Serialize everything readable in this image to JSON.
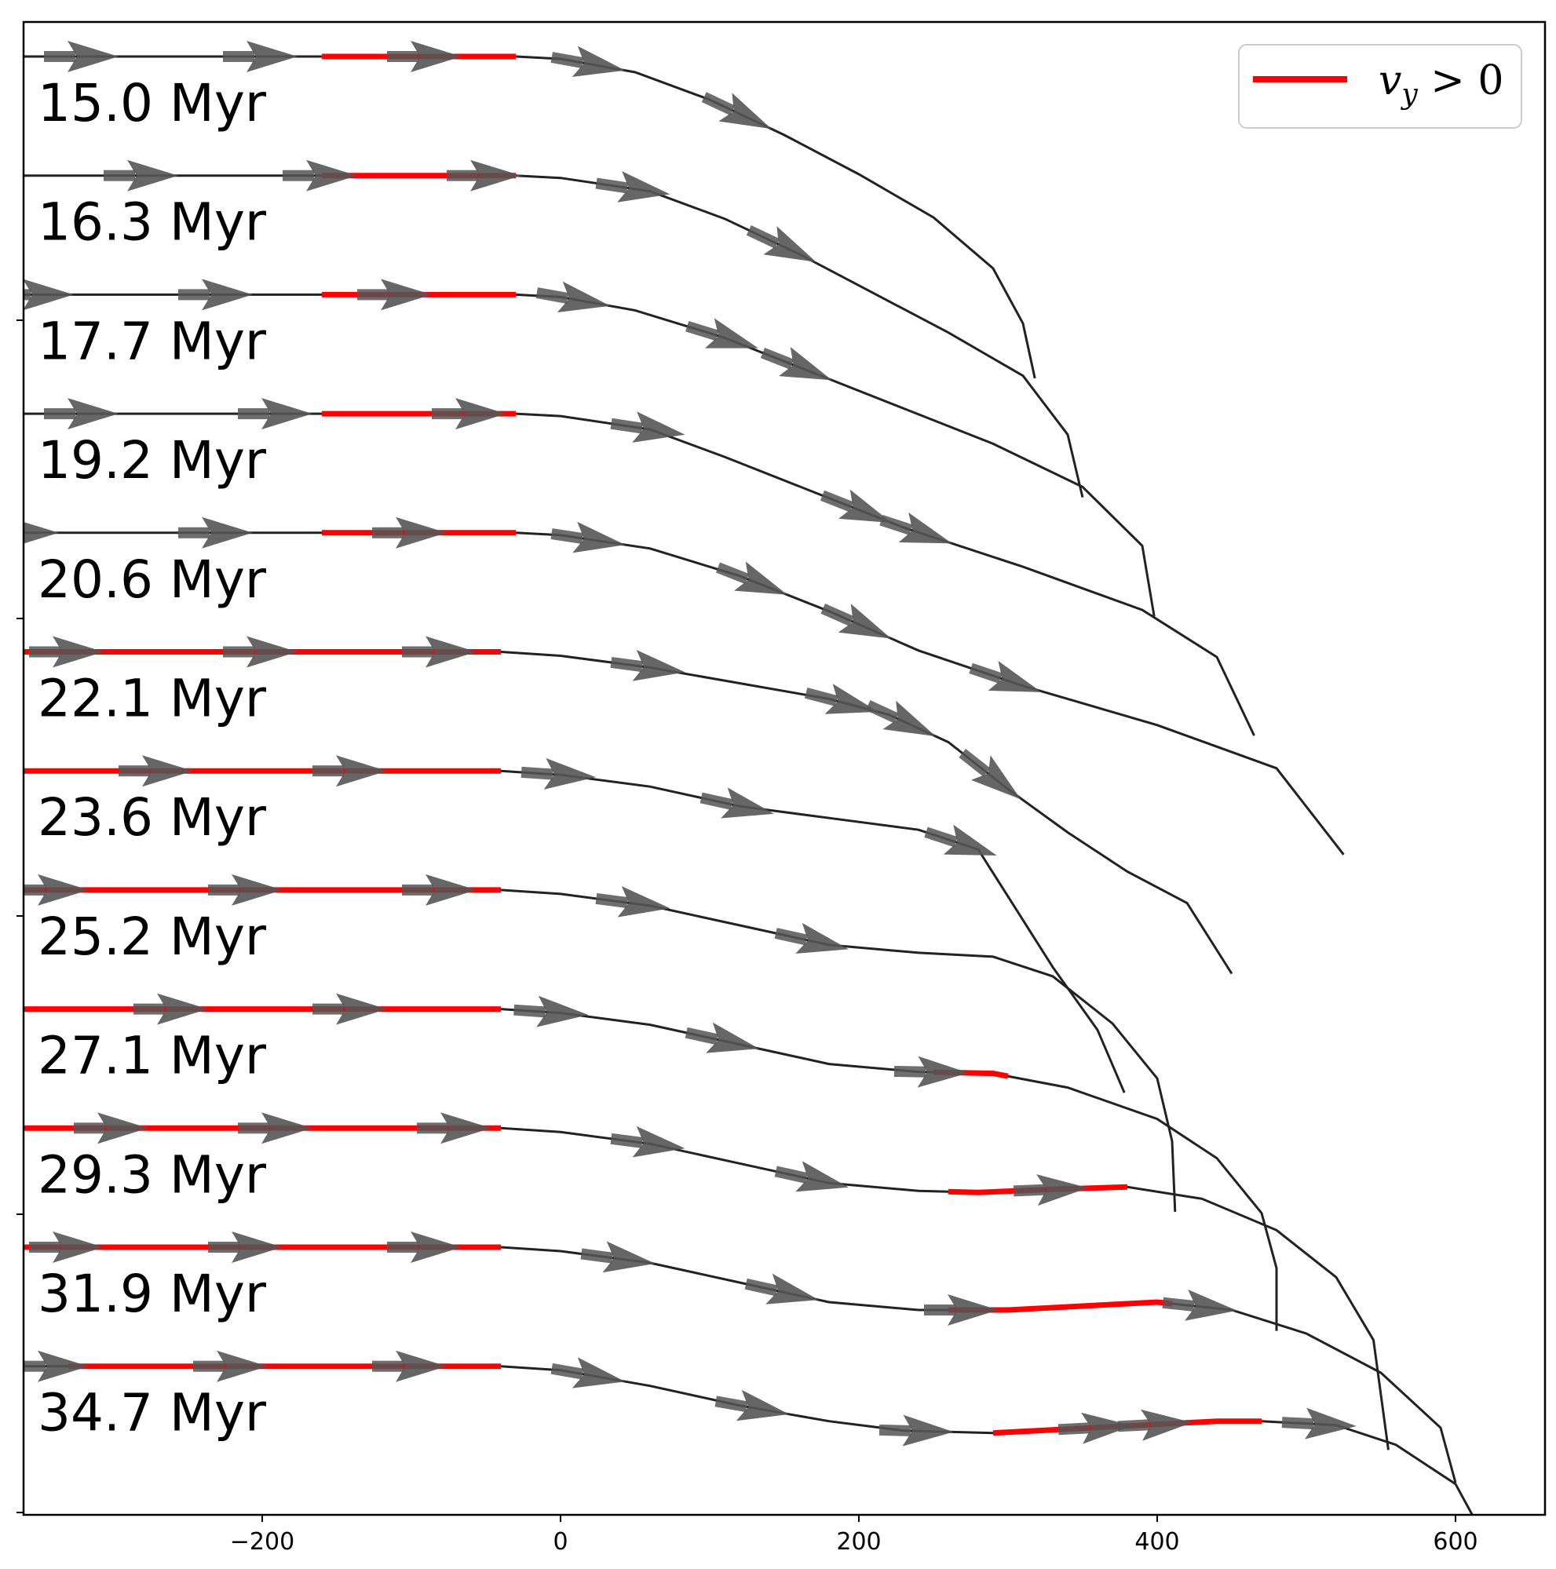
{
  "chart_data": {
    "type": "line",
    "title": "",
    "xlabel": "",
    "ylabel": "",
    "xlim": [
      -360,
      660
    ],
    "x_ticks": [
      -200,
      0,
      200,
      400,
      600
    ],
    "x_tick_labels": [
      "−200",
      "0",
      "200",
      "400",
      "600"
    ],
    "grid": false,
    "legend": {
      "placement": "top-right",
      "entries": [
        {
          "label_main": "v",
          "label_sub": "y",
          "label_rest": " > 0",
          "color": "#ff0000"
        }
      ]
    },
    "colors": {
      "trajectory": "#222222",
      "highlight": "#ff0000",
      "arrow": "#555555"
    },
    "series": [
      {
        "name": "15.0 Myr",
        "path": [
          [
            -360,
            0
          ],
          [
            -30,
            0
          ],
          [
            0,
            -3
          ],
          [
            50,
            -20
          ],
          [
            100,
            -55
          ],
          [
            150,
            -100
          ],
          [
            200,
            -150
          ],
          [
            250,
            -205
          ],
          [
            290,
            -270
          ],
          [
            310,
            -340
          ],
          [
            318,
            -410
          ]
        ],
        "highlight": [
          [
            -160,
            0
          ],
          [
            -30,
            0
          ]
        ],
        "arrows_x": [
          -320,
          -200,
          -90,
          20,
          120
        ]
      },
      {
        "name": "16.3 Myr",
        "path": [
          [
            -360,
            0
          ],
          [
            -30,
            0
          ],
          [
            0,
            -3
          ],
          [
            60,
            -20
          ],
          [
            110,
            -55
          ],
          [
            160,
            -100
          ],
          [
            210,
            -150
          ],
          [
            260,
            -200
          ],
          [
            310,
            -255
          ],
          [
            340,
            -330
          ],
          [
            350,
            -410
          ]
        ],
        "highlight": [
          [
            -160,
            0
          ],
          [
            -30,
            0
          ]
        ],
        "arrows_x": [
          -280,
          -160,
          -50,
          50,
          150
        ]
      },
      {
        "name": "17.7 Myr",
        "path": [
          [
            -360,
            0
          ],
          [
            -30,
            0
          ],
          [
            0,
            -3
          ],
          [
            50,
            -20
          ],
          [
            110,
            -55
          ],
          [
            170,
            -100
          ],
          [
            230,
            -145
          ],
          [
            290,
            -190
          ],
          [
            350,
            -245
          ],
          [
            390,
            -320
          ],
          [
            398,
            -410
          ]
        ],
        "highlight": [
          [
            -160,
            0
          ],
          [
            -30,
            0
          ]
        ],
        "arrows_x": [
          -350,
          -230,
          -110,
          10,
          110,
          160
        ]
      },
      {
        "name": "19.2 Myr",
        "path": [
          [
            -360,
            0
          ],
          [
            -30,
            0
          ],
          [
            0,
            -3
          ],
          [
            60,
            -20
          ],
          [
            110,
            -55
          ],
          [
            170,
            -100
          ],
          [
            230,
            -145
          ],
          [
            310,
            -195
          ],
          [
            390,
            -250
          ],
          [
            440,
            -310
          ],
          [
            465,
            -410
          ]
        ],
        "highlight": [
          [
            -160,
            0
          ],
          [
            -30,
            0
          ]
        ],
        "arrows_x": [
          -320,
          -190,
          -60,
          60,
          200,
          240
        ]
      },
      {
        "name": "20.6 Myr",
        "path": [
          [
            -360,
            0
          ],
          [
            -30,
            0
          ],
          [
            0,
            -3
          ],
          [
            60,
            -20
          ],
          [
            120,
            -55
          ],
          [
            180,
            -100
          ],
          [
            240,
            -150
          ],
          [
            310,
            -195
          ],
          [
            400,
            -245
          ],
          [
            480,
            -300
          ],
          [
            525,
            -410
          ]
        ],
        "highlight": [
          [
            -160,
            0
          ],
          [
            -30,
            0
          ]
        ],
        "arrows_x": [
          -360,
          -230,
          -100,
          20,
          130,
          200,
          300
        ]
      },
      {
        "name": "22.1 Myr",
        "path": [
          [
            -360,
            0
          ],
          [
            -40,
            0
          ],
          [
            0,
            -5
          ],
          [
            60,
            -20
          ],
          [
            120,
            -40
          ],
          [
            180,
            -60
          ],
          [
            220,
            -80
          ],
          [
            260,
            -115
          ],
          [
            300,
            -175
          ],
          [
            340,
            -230
          ],
          [
            380,
            -280
          ],
          [
            420,
            -320
          ],
          [
            450,
            -410
          ]
        ],
        "highlight": [
          [
            -360,
            0
          ],
          [
            -40,
            0
          ]
        ],
        "arrows_x": [
          -330,
          -200,
          -80,
          60,
          190,
          230,
          290
        ]
      },
      {
        "name": "23.6 Myr",
        "path": [
          [
            -360,
            0
          ],
          [
            -40,
            0
          ],
          [
            0,
            -5
          ],
          [
            60,
            -20
          ],
          [
            120,
            -45
          ],
          [
            180,
            -60
          ],
          [
            240,
            -75
          ],
          [
            280,
            -100
          ],
          [
            300,
            -160
          ],
          [
            330,
            -250
          ],
          [
            360,
            -330
          ],
          [
            378,
            -410
          ]
        ],
        "highlight": [
          [
            -360,
            0
          ],
          [
            -40,
            0
          ]
        ],
        "arrows_x": [
          -270,
          -140,
          0,
          120,
          270
        ]
      },
      {
        "name": "25.2 Myr",
        "path": [
          [
            -360,
            0
          ],
          [
            -40,
            0
          ],
          [
            0,
            -5
          ],
          [
            60,
            -20
          ],
          [
            120,
            -45
          ],
          [
            180,
            -70
          ],
          [
            240,
            -80
          ],
          [
            290,
            -85
          ],
          [
            330,
            -110
          ],
          [
            370,
            -170
          ],
          [
            400,
            -240
          ],
          [
            410,
            -320
          ],
          [
            412,
            -410
          ]
        ],
        "highlight": [
          [
            -360,
            0
          ],
          [
            -40,
            0
          ]
        ],
        "arrows_x": [
          -340,
          -210,
          -80,
          50,
          170
        ]
      },
      {
        "name": "27.1 Myr",
        "path": [
          [
            -360,
            0
          ],
          [
            -40,
            0
          ],
          [
            0,
            -5
          ],
          [
            60,
            -20
          ],
          [
            120,
            -45
          ],
          [
            180,
            -70
          ],
          [
            240,
            -80
          ],
          [
            290,
            -82
          ],
          [
            340,
            -100
          ],
          [
            400,
            -140
          ],
          [
            440,
            -190
          ],
          [
            470,
            -260
          ],
          [
            480,
            -330
          ],
          [
            480,
            -410
          ]
        ],
        "highlight": [
          [
            -360,
            0
          ],
          [
            -40,
            0
          ],
          [
            250,
            -82
          ],
          [
            300,
            -82
          ]
        ],
        "arrows_x": [
          -260,
          -140,
          -5,
          110,
          250
        ]
      },
      {
        "name": "29.3 Myr",
        "path": [
          [
            -360,
            0
          ],
          [
            -40,
            0
          ],
          [
            0,
            -5
          ],
          [
            60,
            -20
          ],
          [
            120,
            -45
          ],
          [
            180,
            -70
          ],
          [
            240,
            -80
          ],
          [
            280,
            -82
          ],
          [
            330,
            -78
          ],
          [
            380,
            -75
          ],
          [
            430,
            -90
          ],
          [
            480,
            -130
          ],
          [
            520,
            -190
          ],
          [
            545,
            -270
          ],
          [
            555,
            -410
          ]
        ],
        "highlight": [
          [
            -360,
            0
          ],
          [
            -40,
            0
          ],
          [
            260,
            -80
          ],
          [
            380,
            -75
          ]
        ],
        "arrows_x": [
          -300,
          -190,
          -70,
          60,
          170,
          330
        ]
      },
      {
        "name": "31.9 Myr",
        "path": [
          [
            -360,
            0
          ],
          [
            -40,
            0
          ],
          [
            0,
            -5
          ],
          [
            60,
            -20
          ],
          [
            120,
            -45
          ],
          [
            180,
            -70
          ],
          [
            240,
            -80
          ],
          [
            300,
            -80
          ],
          [
            350,
            -75
          ],
          [
            400,
            -70
          ],
          [
            450,
            -80
          ],
          [
            500,
            -110
          ],
          [
            550,
            -160
          ],
          [
            590,
            -230
          ],
          [
            600,
            -300
          ]
        ],
        "highlight": [
          [
            -360,
            0
          ],
          [
            -40,
            0
          ],
          [
            260,
            -80
          ],
          [
            410,
            -70
          ]
        ],
        "arrows_x": [
          -330,
          -210,
          -90,
          40,
          150,
          270,
          430
        ]
      },
      {
        "name": "34.7 Myr",
        "path": [
          [
            -360,
            0
          ],
          [
            -40,
            0
          ],
          [
            0,
            -5
          ],
          [
            60,
            -25
          ],
          [
            120,
            -50
          ],
          [
            180,
            -70
          ],
          [
            230,
            -82
          ],
          [
            290,
            -85
          ],
          [
            340,
            -80
          ],
          [
            390,
            -75
          ],
          [
            440,
            -70
          ],
          [
            470,
            -70
          ],
          [
            520,
            -75
          ],
          [
            560,
            -100
          ],
          [
            600,
            -150
          ],
          [
            620,
            -220
          ]
        ],
        "highlight": [
          [
            -330,
            0
          ],
          [
            -40,
            0
          ],
          [
            290,
            -85
          ],
          [
            470,
            -70
          ]
        ],
        "arrows_x": [
          -340,
          -220,
          -100,
          20,
          130,
          240,
          360,
          400,
          510
        ]
      }
    ]
  }
}
